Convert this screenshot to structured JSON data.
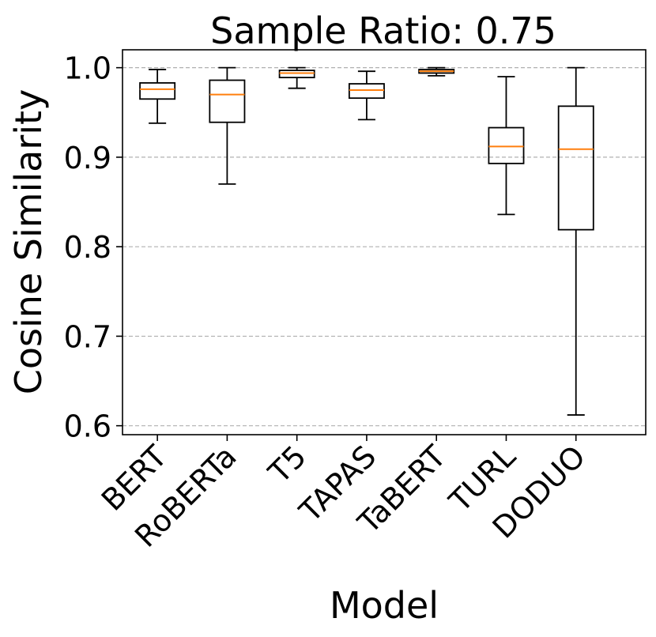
{
  "chart_data": {
    "type": "boxplot",
    "title": "Sample Ratio: 0.75",
    "xlabel": "Model",
    "ylabel": "Cosine Similarity",
    "ylim": [
      0.59,
      1.02
    ],
    "yticks": [
      0.6,
      0.7,
      0.8,
      0.9,
      1.0
    ],
    "ytick_labels": [
      "0.6",
      "0.7",
      "0.8",
      "0.9",
      "1.0"
    ],
    "grid": "y-dashed",
    "categories": [
      "BERT",
      "RoBERTa",
      "T5",
      "TAPAS",
      "TaBERT",
      "TURL",
      "DODUO"
    ],
    "boxes": [
      {
        "name": "BERT",
        "whisker_low": 0.938,
        "q1": 0.965,
        "median": 0.976,
        "q3": 0.983,
        "whisker_high": 0.998
      },
      {
        "name": "RoBERTa",
        "whisker_low": 0.87,
        "q1": 0.939,
        "median": 0.97,
        "q3": 0.986,
        "whisker_high": 1.0
      },
      {
        "name": "T5",
        "whisker_low": 0.977,
        "q1": 0.989,
        "median": 0.994,
        "q3": 0.997,
        "whisker_high": 1.0
      },
      {
        "name": "TAPAS",
        "whisker_low": 0.942,
        "q1": 0.966,
        "median": 0.975,
        "q3": 0.982,
        "whisker_high": 0.996
      },
      {
        "name": "TaBERT",
        "whisker_low": 0.991,
        "q1": 0.994,
        "median": 0.996,
        "q3": 0.998,
        "whisker_high": 1.0
      },
      {
        "name": "TURL",
        "whisker_low": 0.836,
        "q1": 0.893,
        "median": 0.912,
        "q3": 0.933,
        "whisker_high": 0.99
      },
      {
        "name": "DODUO",
        "whisker_low": 0.612,
        "q1": 0.819,
        "median": 0.909,
        "q3": 0.957,
        "whisker_high": 1.0
      }
    ],
    "colors": {
      "box": "#000000",
      "median": "#ff7f0e",
      "grid": "#b0b0b0",
      "background": "#ffffff"
    }
  }
}
